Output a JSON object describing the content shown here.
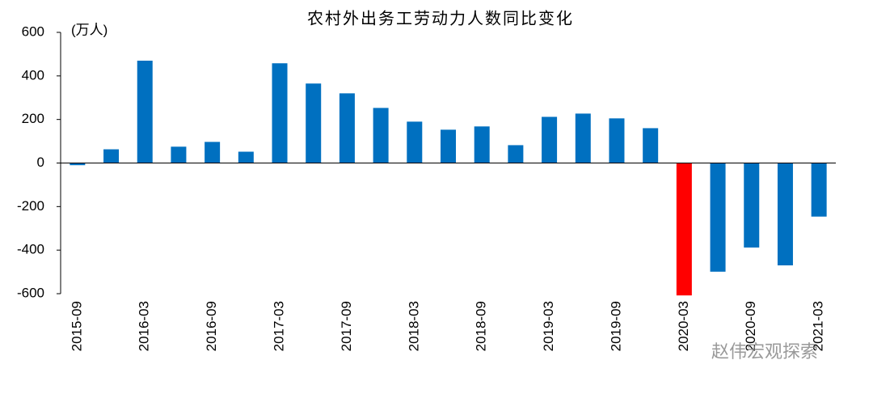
{
  "chart_data": {
    "type": "bar",
    "title": "农村外出务工劳动力人数同比变化",
    "unit_label": "(万人)",
    "watermark": "赵伟宏观探索",
    "categories": [
      "2015-09",
      null,
      "2016-03",
      null,
      "2016-09",
      null,
      "2017-03",
      null,
      "2017-09",
      null,
      "2018-03",
      null,
      "2018-09",
      null,
      "2019-03",
      null,
      "2019-09",
      null,
      "2020-03",
      null,
      "2020-09",
      null,
      "2021-03"
    ],
    "values": [
      -10,
      63,
      470,
      75,
      97,
      52,
      458,
      365,
      320,
      253,
      190,
      153,
      168,
      82,
      212,
      227,
      205,
      160,
      -608,
      -499,
      -388,
      -470,
      -246
    ],
    "colors": [
      "#0070c0",
      "#0070c0",
      "#0070c0",
      "#0070c0",
      "#0070c0",
      "#0070c0",
      "#0070c0",
      "#0070c0",
      "#0070c0",
      "#0070c0",
      "#0070c0",
      "#0070c0",
      "#0070c0",
      "#0070c0",
      "#0070c0",
      "#0070c0",
      "#0070c0",
      "#0070c0",
      "#ff0000",
      "#0070c0",
      "#0070c0",
      "#0070c0",
      "#0070c0"
    ],
    "ylim": [
      -600,
      600
    ],
    "yticks": [
      -600,
      -400,
      -200,
      0,
      200,
      400,
      600
    ],
    "grid": false
  }
}
